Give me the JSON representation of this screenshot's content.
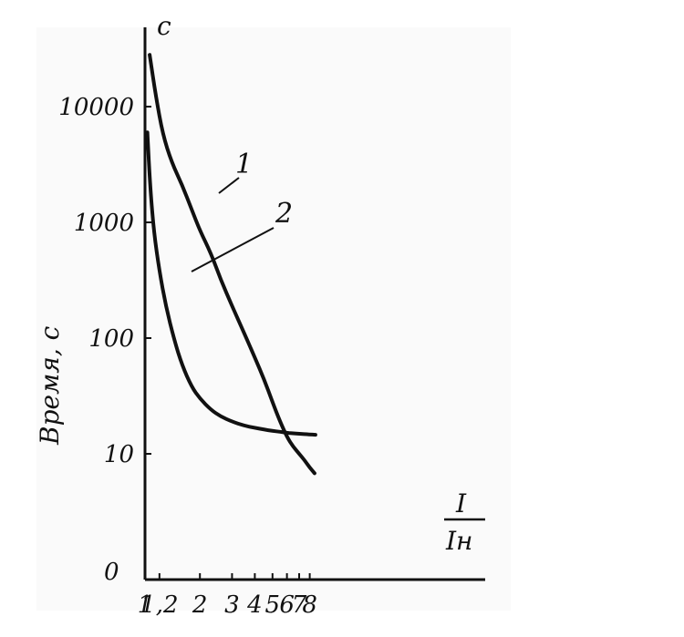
{
  "chart_data": {
    "type": "line",
    "xscale": "log",
    "yscale": "log",
    "xlabel_numerator": "I",
    "xlabel_denominator": "Iн",
    "ylabel": "Время, с",
    "y_unit": "с",
    "x_ticks": [
      {
        "value": 1,
        "label": "1"
      },
      {
        "value": 1.2,
        "label": "1,2"
      },
      {
        "value": 2,
        "label": "2"
      },
      {
        "value": 3,
        "label": "3"
      },
      {
        "value": 4,
        "label": "4"
      },
      {
        "value": 5,
        "label": "5"
      },
      {
        "value": 6,
        "label": "6"
      },
      {
        "value": 7,
        "label": "7"
      },
      {
        "value": 8,
        "label": "8"
      }
    ],
    "y_ticks": [
      {
        "value": 10,
        "label": "10"
      },
      {
        "value": 100,
        "label": "100"
      },
      {
        "value": 1000,
        "label": "1000"
      },
      {
        "value": 10000,
        "label": "10000"
      }
    ],
    "y_zero_label": "0",
    "series": [
      {
        "name": "1",
        "x": [
          1.06,
          1.15,
          1.25,
          1.4,
          1.6,
          1.8,
          2.0,
          2.3,
          2.6,
          3.0,
          3.5,
          4.0,
          4.5,
          5.0,
          5.5,
          6.0,
          6.5,
          7.0,
          7.5,
          8.0,
          8.5
        ],
        "y": [
          28000,
          12000,
          5800,
          3300,
          2100,
          1300,
          850,
          540,
          320,
          190,
          110,
          68,
          44,
          28,
          19,
          14,
          11.5,
          10,
          8.8,
          7.6,
          6.8
        ]
      },
      {
        "name": "2",
        "x": [
          1.03,
          1.07,
          1.12,
          1.2,
          1.3,
          1.45,
          1.6,
          1.8,
          2.0,
          2.3,
          2.6,
          3.0,
          3.5,
          4.0,
          4.5,
          5.0,
          5.5,
          6.0,
          6.5,
          7.0,
          8.0,
          8.6
        ],
        "y": [
          6000,
          1900,
          820,
          380,
          190,
          95,
          58,
          38,
          30,
          24,
          21,
          19,
          17.5,
          16.8,
          16.2,
          15.8,
          15.5,
          15.2,
          15.0,
          14.9,
          14.7,
          14.6
        ]
      }
    ],
    "grid": false,
    "legend": "none"
  }
}
